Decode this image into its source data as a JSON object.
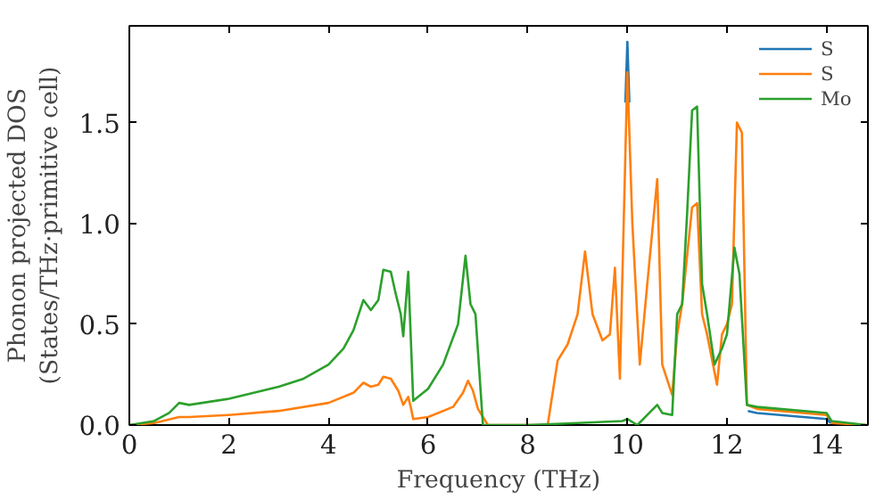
{
  "chart_data": {
    "type": "line",
    "xlabel": "Frequency (THz)",
    "ylabel": "Phonon projected DOS\n(States/THz·primitive cell)",
    "xlim": [
      0,
      14.83
    ],
    "ylim": [
      0,
      1.98
    ],
    "xticks": [
      0,
      2,
      4,
      6,
      8,
      10,
      12,
      14
    ],
    "yticks": [
      {
        "value": 0,
        "label": "0.0"
      },
      {
        "value": 0.5,
        "label": "0.5"
      },
      {
        "value": 1,
        "label": "1.0"
      },
      {
        "value": 1.5,
        "label": "1.5"
      }
    ],
    "grid": false,
    "legend": "top right",
    "marker": "none",
    "line_style": "solid",
    "x": [
      0,
      0.5,
      1.0,
      1.2,
      2,
      3,
      4,
      4.5,
      4.7,
      4.85,
      5.0,
      5.1,
      5.25,
      5.4,
      5.5,
      5.6,
      5.65,
      5.7,
      6.0,
      6.5,
      6.7,
      6.8,
      6.9,
      7.0,
      7.2,
      8.4,
      8.6,
      8.8,
      9.0,
      9.15,
      9.3,
      9.5,
      9.65,
      9.75,
      9.85,
      10.0,
      10.1,
      10.25,
      10.4,
      10.6,
      10.7,
      10.9,
      11.0,
      11.1,
      11.3,
      11.4,
      11.5,
      11.6,
      11.8,
      11.9,
      12.0,
      12.1,
      12.2,
      12.3,
      12.4,
      12.6,
      14.0,
      14.1,
      14.8
    ],
    "series": [
      {
        "name": "S",
        "color": "#1f77b4",
        "x": [
          9.96,
          10.0,
          10.04
        ],
        "values": [
          1.6,
          1.9,
          1.6
        ]
      },
      {
        "name": "S",
        "color": "#ff7f0e",
        "values": [
          0,
          0.01,
          0.04,
          0.04,
          0.05,
          0.07,
          0.11,
          0.16,
          0.21,
          0.19,
          0.2,
          0.24,
          0.23,
          0.17,
          0.1,
          0.14,
          0.09,
          0.03,
          0.04,
          0.09,
          0.16,
          0.22,
          0.17,
          0.08,
          0,
          0,
          0.32,
          0.4,
          0.55,
          0.86,
          0.55,
          0.42,
          0.45,
          0.78,
          0.23,
          1.75,
          1.0,
          0.3,
          0.7,
          1.22,
          0.3,
          0.15,
          0.45,
          0.6,
          1.08,
          1.1,
          0.55,
          0.45,
          0.2,
          0.45,
          0.5,
          0.6,
          1.5,
          1.45,
          0.1,
          0.08,
          0.05,
          0.01,
          0
        ]
      },
      {
        "name": "Mo",
        "color": "#2ca02c",
        "x": [
          0,
          0.5,
          0.8,
          1.0,
          1.2,
          2,
          3,
          3.5,
          4.0,
          4.3,
          4.5,
          4.7,
          4.85,
          5.0,
          5.1,
          5.25,
          5.35,
          5.45,
          5.5,
          5.6,
          5.7,
          6.0,
          6.3,
          6.6,
          6.75,
          6.85,
          6.95,
          7.1,
          8.0,
          9.0,
          9.9,
          10.0,
          10.2,
          10.4,
          10.6,
          10.7,
          10.9,
          11.0,
          11.1,
          11.2,
          11.3,
          11.4,
          11.5,
          11.6,
          11.75,
          11.9,
          12.0,
          12.15,
          12.25,
          12.4,
          12.6,
          14.0,
          14.1,
          14.8
        ],
        "values": [
          0,
          0.02,
          0.06,
          0.11,
          0.1,
          0.13,
          0.19,
          0.23,
          0.3,
          0.38,
          0.47,
          0.62,
          0.57,
          0.62,
          0.77,
          0.76,
          0.65,
          0.55,
          0.44,
          0.76,
          0.12,
          0.18,
          0.3,
          0.5,
          0.84,
          0.6,
          0.55,
          0,
          0,
          0.01,
          0.02,
          0.03,
          0,
          0.05,
          0.1,
          0.06,
          0.05,
          0.55,
          0.6,
          1.05,
          1.56,
          1.58,
          0.7,
          0.55,
          0.3,
          0.38,
          0.45,
          0.88,
          0.75,
          0.1,
          0.09,
          0.06,
          0.02,
          0
        ]
      },
      {
        "color": "#1f77b4",
        "x": [
          12.42,
          12.6,
          14.0,
          14.08
        ],
        "values": [
          0.07,
          0.06,
          0.03,
          0.01
        ]
      }
    ]
  }
}
